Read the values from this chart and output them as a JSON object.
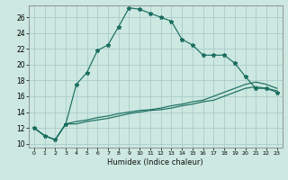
{
  "xlabel": "Humidex (Indice chaleur)",
  "bg_color": "#cce8e0",
  "grid_color": "#aacccc",
  "line_color": "#1a6e60",
  "xlim": [
    -0.5,
    23.5
  ],
  "ylim": [
    9.5,
    27.5
  ],
  "xtick_vals": [
    0,
    1,
    2,
    3,
    4,
    5,
    6,
    7,
    8,
    9,
    10,
    11,
    12,
    13,
    14,
    15,
    16,
    17,
    18,
    19,
    20,
    21,
    22,
    23
  ],
  "ytick_vals": [
    10,
    12,
    14,
    16,
    18,
    20,
    22,
    24,
    26
  ],
  "curve1_x": [
    0,
    1,
    2,
    3,
    4,
    5,
    6,
    7,
    8,
    9,
    10,
    11,
    12,
    13,
    14,
    15,
    16,
    17,
    18,
    19
  ],
  "curve1_y": [
    12.0,
    11.0,
    10.5,
    12.5,
    17.5,
    19.0,
    21.8,
    22.5,
    24.8,
    27.2,
    27.0,
    26.5,
    26.0,
    25.5,
    23.2,
    22.5,
    21.2,
    21.2,
    21.2,
    20.2
  ],
  "curve2_x": [
    0,
    1,
    2,
    3,
    4,
    5,
    6,
    7,
    8,
    9,
    10,
    11,
    12,
    13,
    14,
    15,
    16,
    17,
    18,
    19,
    20,
    21,
    22,
    23
  ],
  "curve2_y": [
    12.0,
    11.0,
    10.5,
    12.5,
    12.8,
    13.0,
    13.3,
    13.5,
    13.8,
    14.0,
    14.2,
    14.3,
    14.5,
    14.8,
    15.0,
    15.3,
    15.5,
    16.0,
    16.5,
    17.0,
    17.5,
    17.8,
    17.5,
    17.0
  ],
  "curve3_x": [
    19,
    20,
    21,
    22,
    23
  ],
  "curve3_y": [
    20.2,
    18.5,
    17.0,
    17.0,
    16.5
  ],
  "curve4_x": [
    0,
    1,
    2,
    3,
    4,
    5,
    6,
    7,
    8,
    9,
    10,
    11,
    12,
    13,
    14,
    15,
    16,
    17,
    18,
    19,
    20,
    21,
    22,
    23
  ],
  "curve4_y": [
    12.0,
    11.0,
    10.5,
    12.5,
    12.5,
    12.8,
    13.0,
    13.2,
    13.5,
    13.8,
    14.0,
    14.2,
    14.3,
    14.5,
    14.8,
    15.0,
    15.3,
    15.5,
    16.0,
    16.5,
    17.0,
    17.2,
    17.0,
    16.7
  ]
}
